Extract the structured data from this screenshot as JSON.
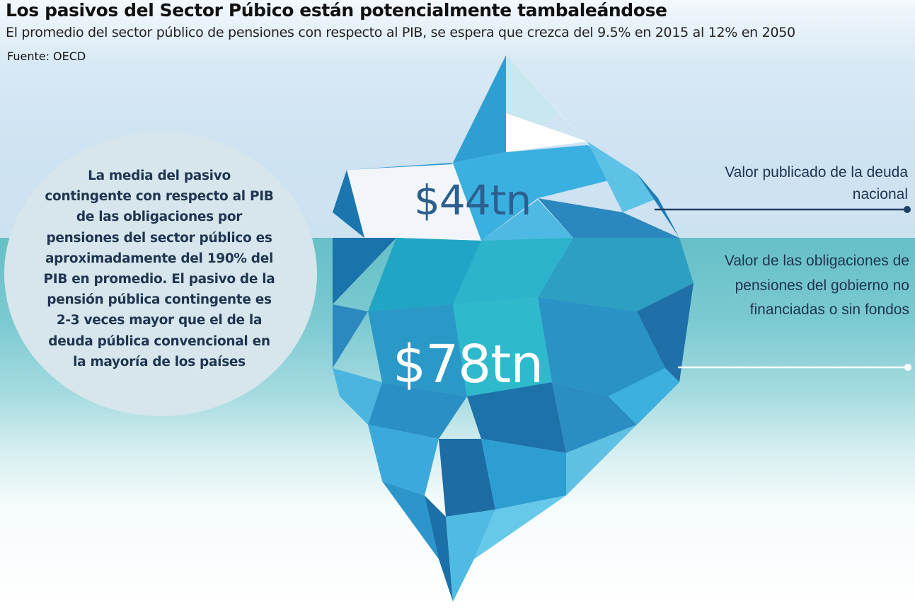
{
  "header": {
    "title": "Los pasivos del Sector Púbico están potencialmente tambaleándose",
    "subtitle": "El promedio del sector público de pensiones con respecto al PIB, se espera que crezca del 9.5% en 2015 al 12% en 2050",
    "source": "Fuente: OECD"
  },
  "callout": {
    "text": "La media del pasivo contingente con respecto al PIB de las obligaciones por pensiones del sector público es aproximadamente del 190% del PIB en promedio. El pasivo de la pensión pública contingente es 2-3 veces mayor que el de la deuda pública convencional en la mayoría de los países"
  },
  "iceberg": {
    "above_value": "$44tn",
    "below_value": "$78tn",
    "above_label": "Valor publicado de la deuda nacional",
    "below_label": "Valor de las obligaciones de pensiones del gobierno no financiadas o sin fondos"
  },
  "colors": {
    "sky": "#cde2f1",
    "water": "#66bfc7",
    "ice_dark": "#1f7fb3",
    "ice_mid": "#2ea2d6",
    "ice_light": "#62c3e6",
    "ice_white": "#f3f7fb",
    "text_navy": "#1e3550",
    "leader_line_top": "#1e3e63",
    "leader_line_bottom": "#ffffff"
  }
}
